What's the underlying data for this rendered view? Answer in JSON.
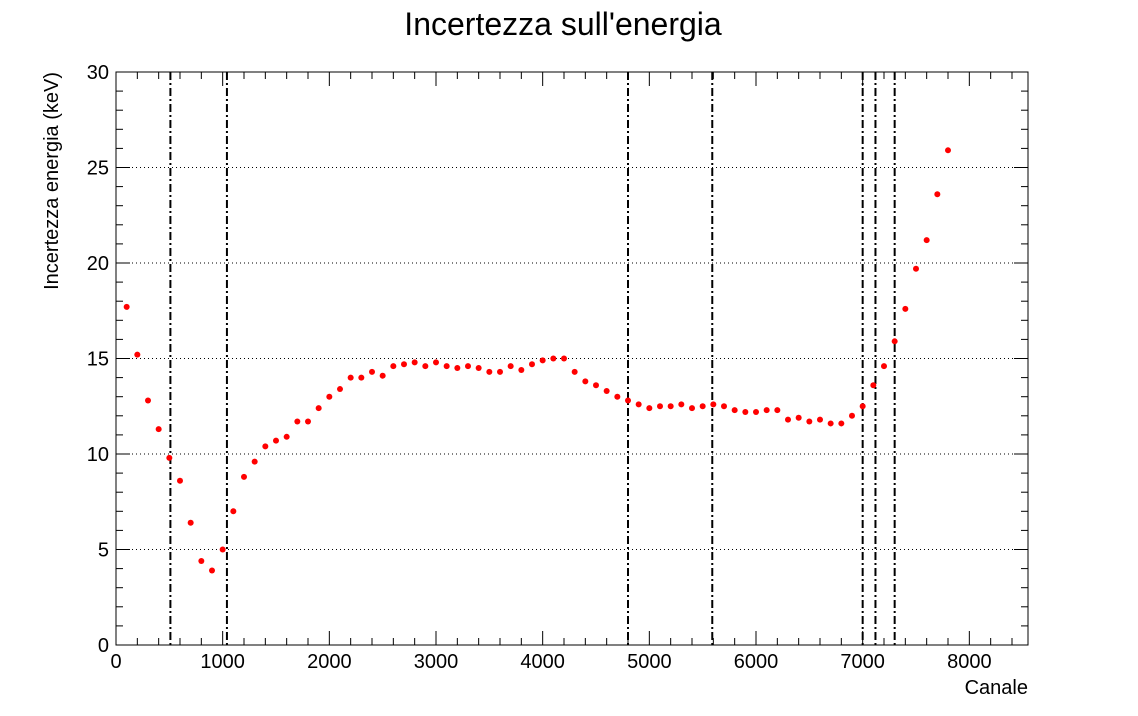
{
  "chart_data": {
    "type": "scatter",
    "title": "Incertezza sull'energia",
    "xlabel": "Canale",
    "ylabel": "Incertezza energia (keV)",
    "xlim": [
      0,
      8550
    ],
    "ylim": [
      0,
      30
    ],
    "x_ticks": [
      0,
      1000,
      2000,
      3000,
      4000,
      5000,
      6000,
      7000,
      8000
    ],
    "y_ticks": [
      0,
      5,
      10,
      15,
      20,
      25,
      30
    ],
    "grid": "horizontal-dotted",
    "marker_color": "#ff0000",
    "vline_color": "#000000",
    "vertical_lines": [
      510,
      1040,
      4800,
      5590,
      7000,
      7120,
      7300
    ],
    "series": [
      {
        "points": [
          [
            100,
            17.7
          ],
          [
            200,
            15.2
          ],
          [
            300,
            12.8
          ],
          [
            400,
            11.3
          ],
          [
            500,
            9.8
          ],
          [
            600,
            8.6
          ],
          [
            700,
            6.4
          ],
          [
            800,
            4.4
          ],
          [
            900,
            3.9
          ],
          [
            1000,
            5.0
          ],
          [
            1100,
            7.0
          ],
          [
            1200,
            8.8
          ],
          [
            1300,
            9.6
          ],
          [
            1400,
            10.4
          ],
          [
            1500,
            10.7
          ],
          [
            1600,
            10.9
          ],
          [
            1700,
            11.7
          ],
          [
            1800,
            11.7
          ],
          [
            1900,
            12.4
          ],
          [
            2000,
            13.0
          ],
          [
            2100,
            13.4
          ],
          [
            2200,
            14.0
          ],
          [
            2300,
            14.0
          ],
          [
            2400,
            14.3
          ],
          [
            2500,
            14.1
          ],
          [
            2600,
            14.6
          ],
          [
            2700,
            14.7
          ],
          [
            2800,
            14.8
          ],
          [
            2900,
            14.6
          ],
          [
            3000,
            14.8
          ],
          [
            3100,
            14.6
          ],
          [
            3200,
            14.5
          ],
          [
            3300,
            14.6
          ],
          [
            3400,
            14.5
          ],
          [
            3500,
            14.3
          ],
          [
            3600,
            14.3
          ],
          [
            3700,
            14.6
          ],
          [
            3800,
            14.4
          ],
          [
            3900,
            14.7
          ],
          [
            4000,
            14.9
          ],
          [
            4100,
            15.0
          ],
          [
            4200,
            15.0
          ],
          [
            4300,
            14.3
          ],
          [
            4400,
            13.8
          ],
          [
            4500,
            13.6
          ],
          [
            4600,
            13.3
          ],
          [
            4700,
            13.0
          ],
          [
            4800,
            12.8
          ],
          [
            4900,
            12.6
          ],
          [
            5000,
            12.4
          ],
          [
            5100,
            12.5
          ],
          [
            5200,
            12.5
          ],
          [
            5300,
            12.6
          ],
          [
            5400,
            12.4
          ],
          [
            5500,
            12.5
          ],
          [
            5600,
            12.6
          ],
          [
            5700,
            12.5
          ],
          [
            5800,
            12.3
          ],
          [
            5900,
            12.2
          ],
          [
            6000,
            12.2
          ],
          [
            6100,
            12.3
          ],
          [
            6200,
            12.3
          ],
          [
            6300,
            11.8
          ],
          [
            6400,
            11.9
          ],
          [
            6500,
            11.7
          ],
          [
            6600,
            11.8
          ],
          [
            6700,
            11.6
          ],
          [
            6800,
            11.6
          ],
          [
            6900,
            12.0
          ],
          [
            7000,
            12.5
          ],
          [
            7100,
            13.6
          ],
          [
            7200,
            14.6
          ],
          [
            7300,
            15.9
          ],
          [
            7400,
            17.6
          ],
          [
            7500,
            19.7
          ],
          [
            7600,
            21.2
          ],
          [
            7700,
            23.6
          ],
          [
            7800,
            25.9
          ]
        ]
      }
    ]
  }
}
